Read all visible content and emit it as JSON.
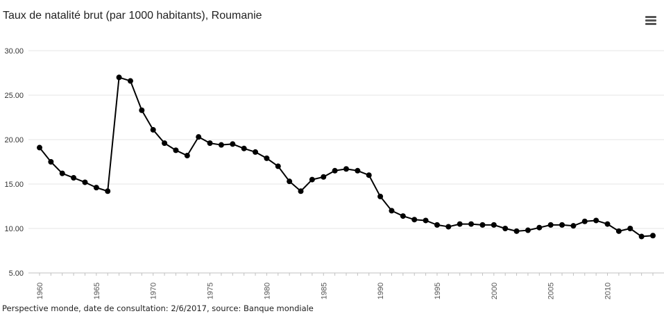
{
  "chart_data": {
    "type": "line",
    "title": "Taux de natalité brut (par 1000 habitants), Roumanie",
    "xlabel": "",
    "ylabel": "",
    "x": [
      1960,
      1961,
      1962,
      1963,
      1964,
      1965,
      1966,
      1967,
      1968,
      1969,
      1970,
      1971,
      1972,
      1973,
      1974,
      1975,
      1976,
      1977,
      1978,
      1979,
      1980,
      1981,
      1982,
      1983,
      1984,
      1985,
      1986,
      1987,
      1988,
      1989,
      1990,
      1991,
      1992,
      1993,
      1994,
      1995,
      1996,
      1997,
      1998,
      1999,
      2000,
      2001,
      2002,
      2003,
      2004,
      2005,
      2006,
      2007,
      2008,
      2009,
      2010,
      2011,
      2012,
      2013,
      2014
    ],
    "series": [
      {
        "values": [
          19.1,
          17.5,
          16.2,
          15.7,
          15.2,
          14.6,
          14.2,
          27.0,
          26.6,
          23.3,
          21.1,
          19.6,
          18.8,
          18.2,
          20.3,
          19.6,
          19.4,
          19.5,
          19.0,
          18.6,
          17.9,
          17.0,
          15.3,
          14.2,
          15.5,
          15.8,
          16.5,
          16.7,
          16.5,
          16.0,
          13.6,
          12.0,
          11.4,
          11.0,
          10.9,
          10.4,
          10.2,
          10.5,
          10.5,
          10.4,
          10.4,
          10.0,
          9.7,
          9.8,
          10.1,
          10.4,
          10.4,
          10.3,
          10.8,
          10.9,
          10.5,
          9.7,
          10.0,
          9.1,
          9.2
        ]
      }
    ],
    "x_ticks": [
      "1960",
      "1965",
      "1970",
      "1975",
      "1980",
      "1985",
      "1990",
      "1995",
      "2000",
      "2005",
      "2010"
    ],
    "y_ticks": [
      "5.00",
      "10.00",
      "15.00",
      "20.00",
      "25.00",
      "30.00"
    ],
    "xlim": [
      1960,
      2014
    ],
    "ylim": [
      5,
      30
    ],
    "grid": true,
    "legend": "none",
    "line_color": "#000000",
    "grid_color": "#e6e6e6"
  },
  "credits": "Perspective monde, date de consultation: 2/6/2017, source: Banque mondiale"
}
